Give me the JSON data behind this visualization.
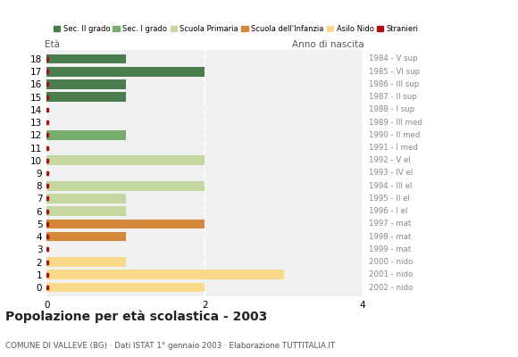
{
  "ages": [
    18,
    17,
    16,
    15,
    14,
    13,
    12,
    11,
    10,
    9,
    8,
    7,
    6,
    5,
    4,
    3,
    2,
    1,
    0
  ],
  "anno_nascita": [
    "1984 - V sup",
    "1985 - VI sup",
    "1986 - III sup",
    "1987 - II sup",
    "1988 - I sup",
    "1989 - III med",
    "1990 - II med",
    "1991 - I med",
    "1992 - V el",
    "1993 - IV el",
    "1994 - III el",
    "1995 - II el",
    "1996 - I el",
    "1997 - mat",
    "1998 - mat",
    "1999 - mat",
    "2000 - nido",
    "2001 - nido",
    "2002 - nido"
  ],
  "values": [
    1,
    2,
    1,
    1,
    0,
    0,
    1,
    0,
    2,
    0,
    2,
    1,
    1,
    2,
    1,
    0,
    1,
    3,
    2
  ],
  "colors": {
    "sec2": "#4a7c4e",
    "sec1": "#7aab6e",
    "primaria": "#c5d8a0",
    "infanzia": "#d4883a",
    "nido": "#f9d98a",
    "stranieri": "#aa1111"
  },
  "bar_colors": [
    "sec2",
    "sec2",
    "sec2",
    "sec2",
    "sec2",
    "sec1",
    "sec1",
    "sec1",
    "primaria",
    "primaria",
    "primaria",
    "primaria",
    "primaria",
    "infanzia",
    "infanzia",
    "infanzia",
    "nido",
    "nido",
    "nido"
  ],
  "legend_labels": [
    "Sec. II grado",
    "Sec. I grado",
    "Scuola Primaria",
    "Scuola dell'Infanzia",
    "Asilo Nido",
    "Stranieri"
  ],
  "legend_colors": [
    "#4a7c4e",
    "#7aab6e",
    "#c5d8a0",
    "#d4883a",
    "#f9d98a",
    "#aa1111"
  ],
  "title": "Popolazione per età scolastica - 2003",
  "subtitle": "COMUNE DI VALLEVE (BG) · Dati ISTAT 1° gennaio 2003 · Elaborazione TUTTITALIA.IT",
  "xlabel_eta": "Età",
  "xlabel_anno": "Anno di nascita",
  "xlim": [
    0,
    4
  ],
  "xticks": [
    0,
    2,
    4
  ],
  "background_color": "#ffffff",
  "plot_bg_color": "#f0f0f0"
}
